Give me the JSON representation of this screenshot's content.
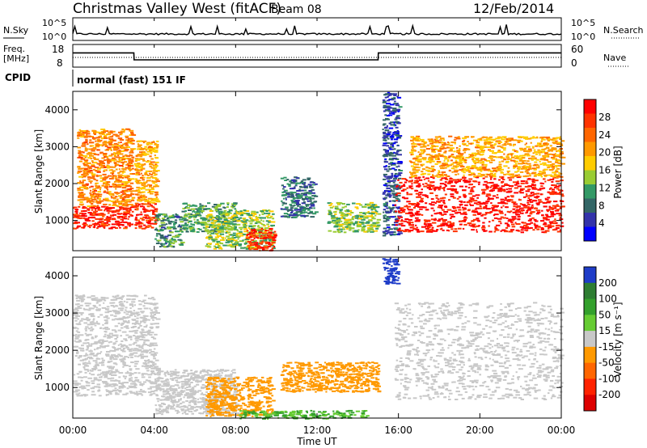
{
  "header": {
    "station": "Christmas Valley West (fitACF)",
    "beam": "Beam 08",
    "date": "12/Feb/2014"
  },
  "top_panels": {
    "nsky_label": "N.Sky",
    "nsearch_label": "N.Search",
    "nave_label": "Nave",
    "freq_label_line1": "Freq.",
    "freq_label_line2": "[MHz]",
    "cpid_label": "CPID",
    "cpid_text": "normal (fast) 151 IF",
    "nsky_ticks": [
      "10^5",
      "10^0"
    ],
    "nsearch_ticks": [
      "10^5",
      "10^0"
    ],
    "freq_ticks": [
      "18",
      "8"
    ],
    "nave_ticks": [
      "60",
      "0"
    ]
  },
  "x_axis": {
    "label": "Time UT",
    "ticks": [
      "00:00",
      "04:00",
      "08:00",
      "12:00",
      "16:00",
      "20:00",
      "00:00"
    ]
  },
  "power_panel": {
    "ylabel": "Slant Range [km]",
    "colorbar_label": "Power [dB]",
    "colorbar_ticks": [
      "28",
      "24",
      "20",
      "16",
      "12",
      "8",
      "4"
    ],
    "colors": [
      "#ff0000",
      "#ff3300",
      "#ff6600",
      "#ff9900",
      "#ffcc00",
      "#99cc33",
      "#339966",
      "#336666",
      "#3333aa",
      "#0000ff"
    ]
  },
  "velocity_panel": {
    "ylabel": "Slant Range [km]",
    "colorbar_label": "Velocity [m s⁻¹]",
    "colorbar_ticks": [
      "200",
      "100",
      "50",
      "15",
      "-15",
      "-50",
      "-100",
      "-200"
    ],
    "colors": [
      "#1e3cc8",
      "#2e7d32",
      "#33a02c",
      "#66cc33",
      "#c8c8c8",
      "#ff9900",
      "#ff6600",
      "#ff2200",
      "#dd0000"
    ]
  },
  "chart_data": [
    {
      "type": "line",
      "title": "N.Sky / N.Search",
      "x_hours": [
        0,
        3,
        6,
        9,
        12,
        15,
        18,
        21,
        24
      ],
      "series": [
        {
          "name": "N.Sky",
          "values": [
            2,
            2,
            2,
            2,
            2,
            2,
            2,
            2,
            2
          ]
        }
      ]
    },
    {
      "type": "line",
      "title": "Freq. [MHz]",
      "x_hours": [
        0,
        3,
        3.01,
        15,
        15.01,
        24
      ],
      "series": [
        {
          "name": "Freq",
          "values": [
            14.8,
            14.8,
            10.5,
            10.5,
            14.8,
            14.8
          ]
        }
      ]
    },
    {
      "type": "heatmap",
      "ylabel": "Slant Range [km]",
      "xlabel": "Time UT",
      "xlim_hours": [
        0,
        24
      ],
      "ylim_km": [
        180,
        4500
      ],
      "colorbar": {
        "label": "Power [dB]",
        "range": [
          0,
          32
        ]
      },
      "scatter_regions": [
        {
          "t0": 0.0,
          "t1": 2.9,
          "r0": 800,
          "r1": 1400,
          "level": 29
        },
        {
          "t0": 0.2,
          "t1": 2.9,
          "r0": 1400,
          "r1": 3500,
          "level": 22
        },
        {
          "t0": 3.0,
          "t1": 4.1,
          "r0": 800,
          "r1": 1500,
          "level": 28
        },
        {
          "t0": 3.0,
          "t1": 4.1,
          "r0": 1500,
          "r1": 3200,
          "level": 20
        },
        {
          "t0": 4.0,
          "t1": 5.3,
          "r0": 300,
          "r1": 1200,
          "level": 10
        },
        {
          "t0": 5.3,
          "t1": 8.0,
          "r0": 700,
          "r1": 1500,
          "level": 12
        },
        {
          "t0": 6.5,
          "t1": 9.8,
          "r0": 250,
          "r1": 1300,
          "level": 14
        },
        {
          "t0": 8.5,
          "t1": 9.9,
          "r0": 200,
          "r1": 800,
          "level": 28
        },
        {
          "t0": 10.2,
          "t1": 11.9,
          "r0": 1100,
          "r1": 2200,
          "level": 8
        },
        {
          "t0": 12.5,
          "t1": 15.0,
          "r0": 700,
          "r1": 1500,
          "level": 14
        },
        {
          "t0": 15.2,
          "t1": 16.0,
          "r0": 600,
          "r1": 4500,
          "level": 6
        },
        {
          "t0": 15.8,
          "t1": 24.0,
          "r0": 700,
          "r1": 2200,
          "level": 30
        },
        {
          "t0": 16.5,
          "t1": 24.0,
          "r0": 2200,
          "r1": 3300,
          "level": 20
        }
      ]
    },
    {
      "type": "heatmap",
      "ylabel": "Slant Range [km]",
      "xlabel": "Time UT",
      "xlim_hours": [
        0,
        24
      ],
      "ylim_km": [
        180,
        4500
      ],
      "colorbar": {
        "label": "Velocity [m s⁻¹]",
        "range": [
          -250,
          250
        ]
      },
      "scatter_regions": [
        {
          "t0": 0.0,
          "t1": 4.1,
          "r0": 800,
          "r1": 3500,
          "level": 0
        },
        {
          "t0": 4.0,
          "t1": 8.0,
          "r0": 300,
          "r1": 1500,
          "level": 0
        },
        {
          "t0": 6.5,
          "t1": 9.8,
          "r0": 250,
          "r1": 1300,
          "level": -40
        },
        {
          "t0": 8.0,
          "t1": 14.5,
          "r0": 180,
          "r1": 400,
          "level": 30
        },
        {
          "t0": 10.2,
          "t1": 15.0,
          "r0": 900,
          "r1": 1700,
          "level": -30
        },
        {
          "t0": 15.2,
          "t1": 16.0,
          "r0": 3800,
          "r1": 4500,
          "level": 220
        },
        {
          "t0": 15.8,
          "t1": 24.0,
          "r0": 700,
          "r1": 3300,
          "level": 0
        }
      ]
    }
  ]
}
